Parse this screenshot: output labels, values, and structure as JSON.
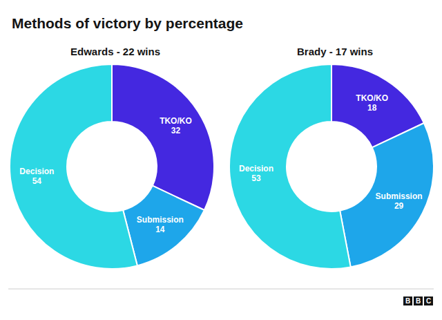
{
  "title": "Methods of victory by percentage",
  "logo": "BBC",
  "chart_data": [
    {
      "type": "pie",
      "title": "Edwards - 22 wins",
      "categories": [
        "TKO/KO",
        "Submission",
        "Decision"
      ],
      "values": [
        32,
        14,
        54
      ],
      "colors": [
        "#4428e0",
        "#1ea6ea",
        "#2cd8e4"
      ],
      "data_labels": true
    },
    {
      "type": "pie",
      "title": "Brady - 17 wins",
      "categories": [
        "TKO/KO",
        "Submission",
        "Decision"
      ],
      "values": [
        18,
        29,
        53
      ],
      "colors": [
        "#4428e0",
        "#1ea6ea",
        "#2cd8e4"
      ],
      "data_labels": true
    }
  ]
}
